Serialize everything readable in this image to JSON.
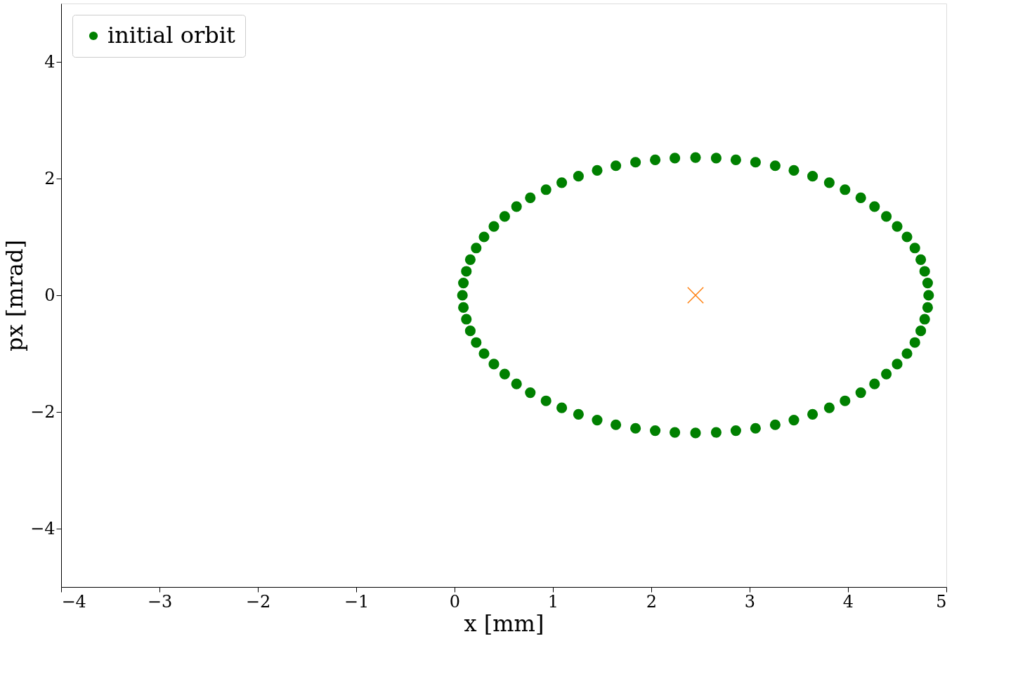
{
  "chart_data": {
    "type": "scatter",
    "xlabel": "x [mm]",
    "ylabel": "px [mrad]",
    "xlim": [
      -4,
      5
    ],
    "ylim": [
      -5,
      5
    ],
    "xticks": [
      {
        "value": -4,
        "label": "−4"
      },
      {
        "value": -3,
        "label": "−3"
      },
      {
        "value": -2,
        "label": "−2"
      },
      {
        "value": -1,
        "label": "−1"
      },
      0,
      1,
      2,
      3,
      4,
      5
    ],
    "yticks": [
      {
        "value": -4,
        "label": "−4"
      },
      {
        "value": -2,
        "label": "−2"
      },
      0,
      2,
      4
    ],
    "grid": false,
    "legend": "top left",
    "series": [
      {
        "name": "initial orbit",
        "color": "#008000",
        "marker": "circle",
        "x": [
          4.82,
          4.81,
          4.78,
          4.74,
          4.68,
          4.6,
          4.5,
          4.39,
          4.27,
          4.13,
          3.97,
          3.81,
          3.64,
          3.45,
          3.26,
          3.06,
          2.86,
          2.66,
          2.45,
          2.24,
          2.04,
          1.84,
          1.64,
          1.45,
          1.26,
          1.09,
          0.93,
          0.77,
          0.63,
          0.51,
          0.4,
          0.3,
          0.22,
          0.16,
          0.12,
          0.09,
          0.08,
          0.09,
          0.12,
          0.16,
          0.22,
          0.3,
          0.4,
          0.51,
          0.63,
          0.77,
          0.93,
          1.09,
          1.26,
          1.45,
          1.64,
          1.84,
          2.04,
          2.24,
          2.45,
          2.66,
          2.86,
          3.06,
          3.26,
          3.45,
          3.64,
          3.81,
          3.97,
          4.13,
          4.27,
          4.39,
          4.5,
          4.6,
          4.68,
          4.74,
          4.78,
          4.81
        ],
        "values": [
          0,
          0.21,
          0.41,
          0.61,
          0.81,
          1.0,
          1.18,
          1.35,
          1.52,
          1.67,
          1.81,
          1.93,
          2.04,
          2.14,
          2.22,
          2.28,
          2.32,
          2.35,
          2.36,
          2.35,
          2.32,
          2.28,
          2.22,
          2.14,
          2.04,
          1.93,
          1.81,
          1.67,
          1.52,
          1.35,
          1.18,
          1.0,
          0.81,
          0.61,
          0.41,
          0.21,
          0,
          -0.21,
          -0.41,
          -0.61,
          -0.81,
          -1.0,
          -1.18,
          -1.35,
          -1.52,
          -1.67,
          -1.81,
          -1.93,
          -2.04,
          -2.14,
          -2.22,
          -2.28,
          -2.32,
          -2.35,
          -2.36,
          -2.35,
          -2.32,
          -2.28,
          -2.22,
          -2.14,
          -2.04,
          -1.93,
          -1.81,
          -1.67,
          -1.52,
          -1.35,
          -1.18,
          -1.0,
          -0.81,
          -0.61,
          -0.41,
          -0.21
        ]
      },
      {
        "color": "#ff7f0e",
        "marker": "cross",
        "x": [
          2.45
        ],
        "values": [
          0
        ]
      }
    ]
  }
}
